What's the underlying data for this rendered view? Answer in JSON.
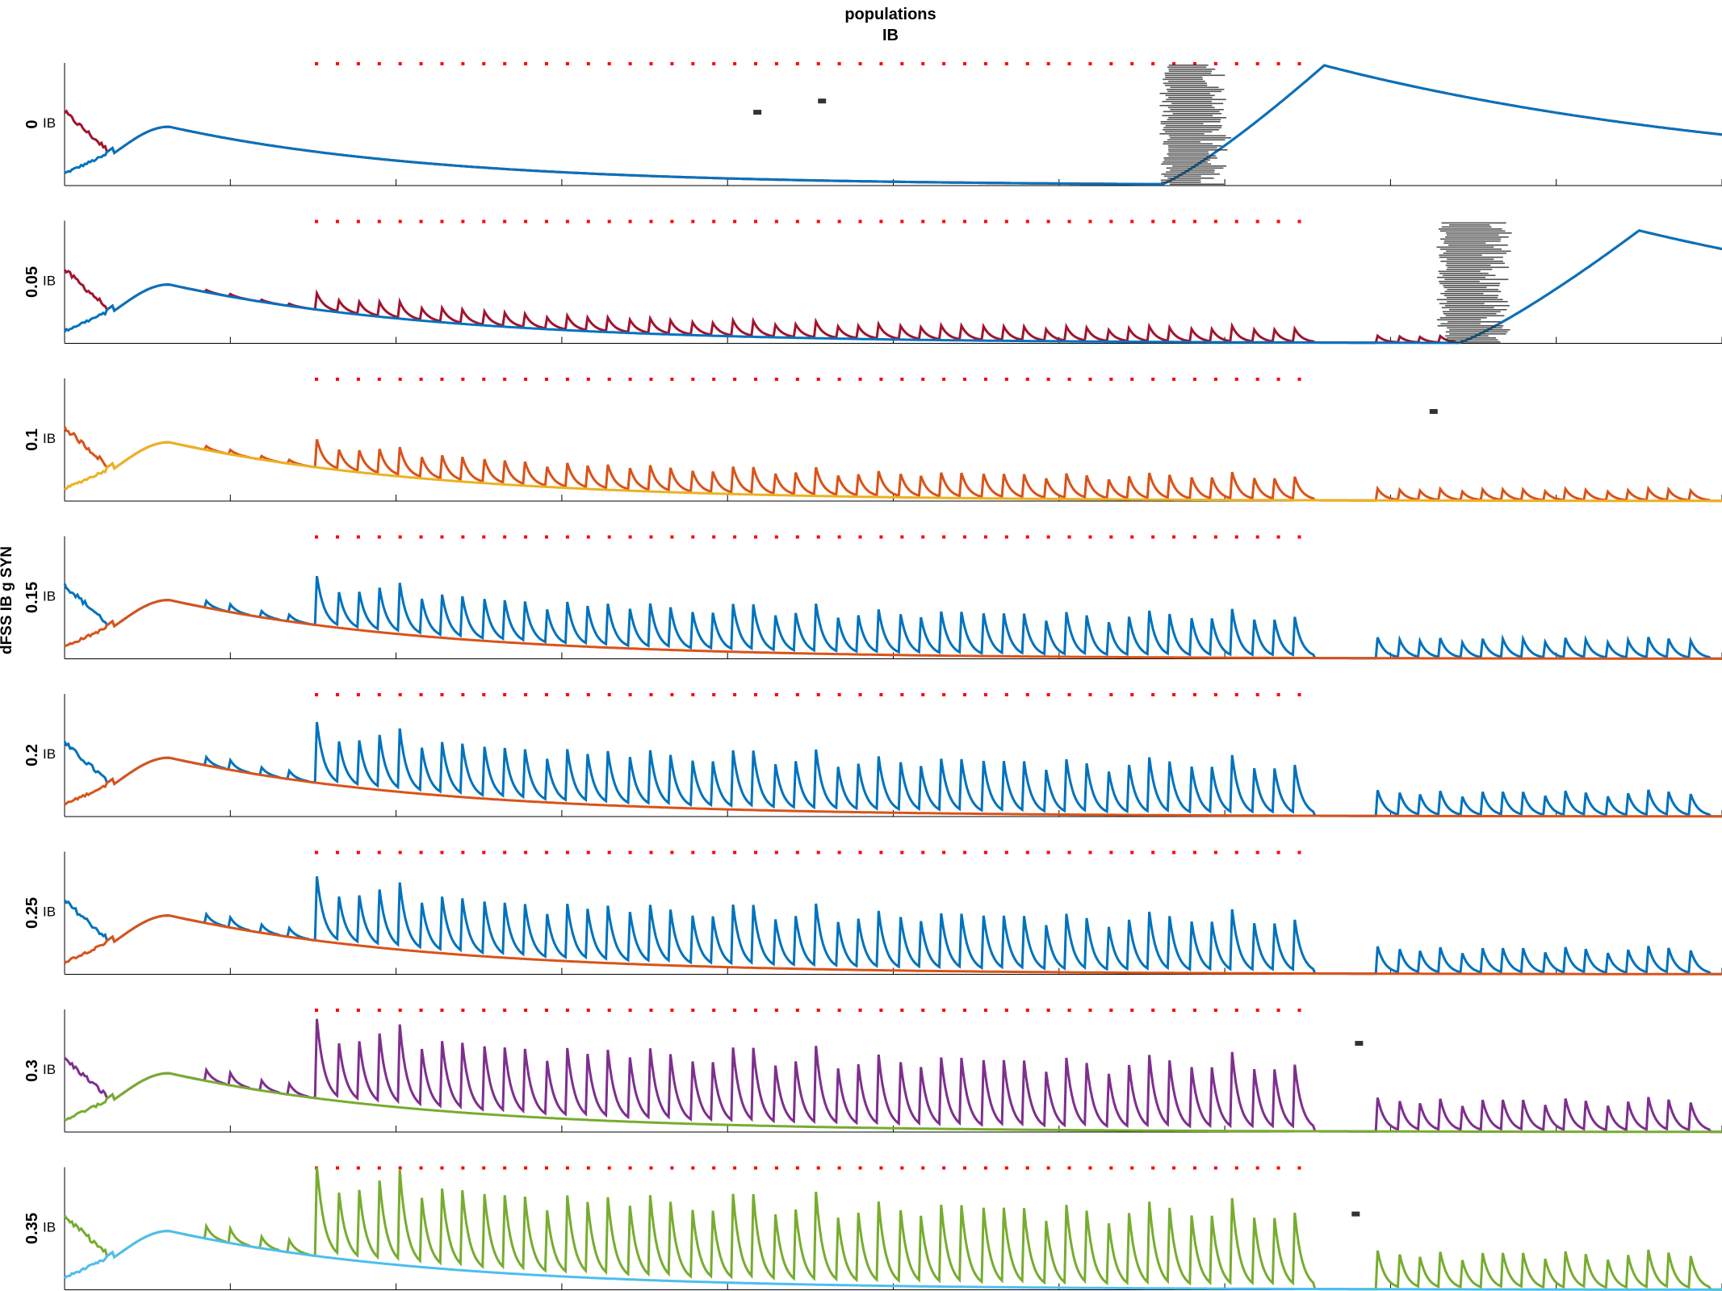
{
  "figure": {
    "title_line1": "populations",
    "title_line2": "IB",
    "ylabel": "dFSS IB g SYN"
  },
  "chart_data": {
    "type": "line",
    "title": "populations IB",
    "ylabel": "dFSS IB g SYN",
    "xlabel": "",
    "grid": false,
    "legend": "none",
    "x_tick_count": 11,
    "x_range": [
      0,
      1
    ],
    "y_range": [
      0,
      1
    ],
    "stimulus_marker_color": "#ff0000",
    "spike_raster_color": "#333333",
    "rows": [
      {
        "value": "0",
        "population": "IB",
        "series": [
          {
            "color": "#a2142f",
            "role": "trace-1",
            "peak_amplitude": 0.0
          },
          {
            "color": "#0072bd",
            "role": "trace-2",
            "late_rise_start": 0.66,
            "late_peak_x": 0.76,
            "late_peak_y": 0.98
          }
        ],
        "spike_raster": {
          "start": 0.663,
          "end": 0.7,
          "sparse_x": [
            0.418,
            0.457
          ]
        }
      },
      {
        "value": "0.05",
        "population": "IB",
        "series": [
          {
            "color": "#a2142f",
            "role": "trace-1",
            "peak_amplitude": 0.14
          },
          {
            "color": "#0072bd",
            "role": "trace-2",
            "late_rise_start": 0.84,
            "late_peak_x": 0.95,
            "late_peak_y": 0.92
          }
        ],
        "spike_raster": {
          "start": 0.83,
          "end": 0.87,
          "sparse_x": []
        }
      },
      {
        "value": "0.1",
        "population": "IB",
        "series": [
          {
            "color": "#d95319",
            "role": "trace-1",
            "peak_amplitude": 0.24
          },
          {
            "color": "#edb120",
            "role": "trace-2"
          }
        ],
        "spike_raster": {
          "start": null,
          "end": null,
          "sparse_x": [
            0.826
          ]
        }
      },
      {
        "value": "0.15",
        "population": "IB",
        "series": [
          {
            "color": "#0072bd",
            "role": "trace-1",
            "peak_amplitude": 0.42
          },
          {
            "color": "#d95319",
            "role": "trace-2"
          }
        ],
        "spike_raster": {
          "start": null,
          "end": null,
          "sparse_x": []
        }
      },
      {
        "value": "0.2",
        "population": "IB",
        "series": [
          {
            "color": "#0072bd",
            "role": "trace-1",
            "peak_amplitude": 0.52
          },
          {
            "color": "#d95319",
            "role": "trace-2"
          }
        ],
        "spike_raster": {
          "start": null,
          "end": null,
          "sparse_x": []
        }
      },
      {
        "value": "0.25",
        "population": "IB",
        "series": [
          {
            "color": "#0072bd",
            "role": "trace-1",
            "peak_amplitude": 0.55
          },
          {
            "color": "#d95319",
            "role": "trace-2"
          }
        ],
        "spike_raster": {
          "start": null,
          "end": null,
          "sparse_x": []
        }
      },
      {
        "value": "0.3",
        "population": "IB",
        "series": [
          {
            "color": "#7e2f8e",
            "role": "trace-1",
            "peak_amplitude": 0.68
          },
          {
            "color": "#77ac30",
            "role": "trace-2"
          }
        ],
        "spike_raster": {
          "start": null,
          "end": null,
          "sparse_x": [
            0.781
          ]
        }
      },
      {
        "value": "0.35",
        "population": "IB",
        "series": [
          {
            "color": "#77ac30",
            "role": "trace-1",
            "peak_amplitude": 0.78
          },
          {
            "color": "#4dbeee",
            "role": "trace-2"
          }
        ],
        "spike_raster": {
          "start": null,
          "end": null,
          "sparse_x": [
            0.779
          ]
        }
      }
    ]
  }
}
